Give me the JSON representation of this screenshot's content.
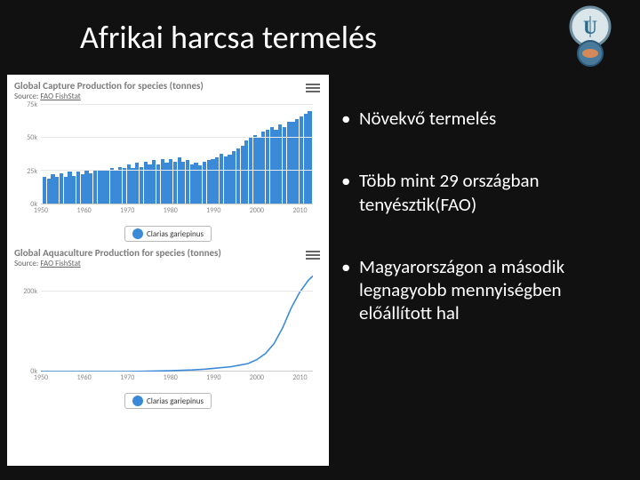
{
  "title": "Afrikai harcsa termelés",
  "logo": {
    "outer_ring_color": "#6c8e9e",
    "inner_u_color": "#2a6a8a",
    "bg": "#dbe6ea"
  },
  "bullets": [
    "Növekvő termelés",
    "Több mint 29 országban tenyésztik(FAO)",
    "Magyarországon a második legnagyobb mennyiségben előállított hal"
  ],
  "charts": {
    "capture": {
      "type": "bar",
      "title": "Global Capture Production for species (tonnes)",
      "source_prefix": "Source: ",
      "source_link": "FAO FishStat",
      "bar_color": "#3b8ad8",
      "background_color": "#ffffff",
      "grid_color": "#e8e8e8",
      "axis_color": "#888888",
      "y_ticks": [
        "0k",
        "25k",
        "50k",
        "75k"
      ],
      "ylim": [
        0,
        75
      ],
      "x_ticks_labels": [
        "1950",
        "1960",
        "1970",
        "1980",
        "1990",
        "2000",
        "2010"
      ],
      "x_start": 1950,
      "x_end": 2013,
      "values": [
        20,
        19,
        22,
        20,
        23,
        20,
        24,
        21,
        24,
        22,
        25,
        23,
        26,
        25,
        26,
        26,
        27,
        26,
        28,
        27,
        30,
        27,
        31,
        28,
        32,
        30,
        33,
        30,
        34,
        31,
        34,
        32,
        35,
        32,
        33,
        30,
        31,
        29,
        32,
        33,
        34,
        35,
        38,
        36,
        37,
        40,
        42,
        44,
        48,
        50,
        52,
        50,
        55,
        56,
        58,
        56,
        60,
        58,
        62,
        62,
        64,
        66,
        68,
        70
      ],
      "legend_label": "Clarias gariepinus",
      "legend_swatch_color": "#3b8ad8"
    },
    "aquaculture": {
      "type": "line",
      "title": "Global Aquaculture Production for species (tonnes)",
      "source_prefix": "Source: ",
      "source_link": "FAO FishStat",
      "line_color": "#3b8ad8",
      "line_width": 1.6,
      "background_color": "#ffffff",
      "grid_color": "#e8e8e8",
      "axis_color": "#888888",
      "y_ticks": [
        "0k",
        "200k"
      ],
      "ylim": [
        0,
        250
      ],
      "x_ticks_labels": [
        "1950",
        "1960",
        "1970",
        "1980",
        "1990",
        "2000",
        "2010"
      ],
      "x_start": 1950,
      "x_end": 2013,
      "points": [
        [
          1950,
          0
        ],
        [
          1960,
          0
        ],
        [
          1970,
          0
        ],
        [
          1975,
          1
        ],
        [
          1980,
          2
        ],
        [
          1985,
          4
        ],
        [
          1988,
          6
        ],
        [
          1990,
          8
        ],
        [
          1992,
          10
        ],
        [
          1994,
          12
        ],
        [
          1996,
          16
        ],
        [
          1998,
          20
        ],
        [
          2000,
          30
        ],
        [
          2002,
          45
        ],
        [
          2004,
          70
        ],
        [
          2006,
          110
        ],
        [
          2008,
          160
        ],
        [
          2010,
          200
        ],
        [
          2011,
          215
        ],
        [
          2012,
          230
        ],
        [
          2013,
          240
        ]
      ],
      "legend_label": "Clarias gariepinus",
      "legend_swatch_color": "#3b8ad8"
    }
  }
}
